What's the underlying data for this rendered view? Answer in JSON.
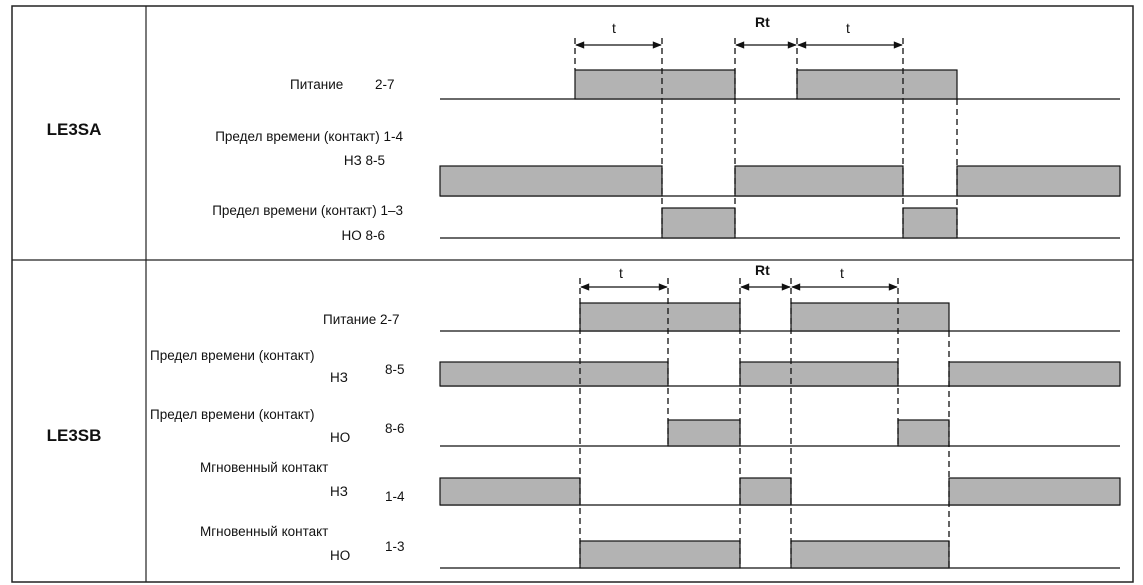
{
  "sections": [
    {
      "model": "LE3SA",
      "markers": {
        "t1": "t",
        "rt": "Rt",
        "t2": "t"
      },
      "rows": [
        {
          "label": "Питание",
          "terminals": "2-7"
        },
        {
          "label": "Предел времени (контакт) 1-4",
          "sublabel": "НЗ 8-5"
        },
        {
          "label": "Предел времени (контакт) 1–3",
          "sublabel": "НО 8-6"
        }
      ]
    },
    {
      "model": "LE3SB",
      "markers": {
        "t1": "t",
        "rt": "Rt",
        "t2": "t"
      },
      "rows": [
        {
          "label": "Питание 2-7"
        },
        {
          "label": "Предел времени (контакт)",
          "sublabel": "НЗ",
          "terminals": "8-5"
        },
        {
          "label": "Предел времени (контакт)",
          "sublabel": "НО",
          "terminals": "8-6"
        },
        {
          "label": "Мгновенный контакт",
          "sublabel": "НЗ",
          "terminals": "1-4"
        },
        {
          "label": "Мгновенный контакт",
          "sublabel": "НО",
          "terminals": "1-3"
        }
      ]
    }
  ]
}
